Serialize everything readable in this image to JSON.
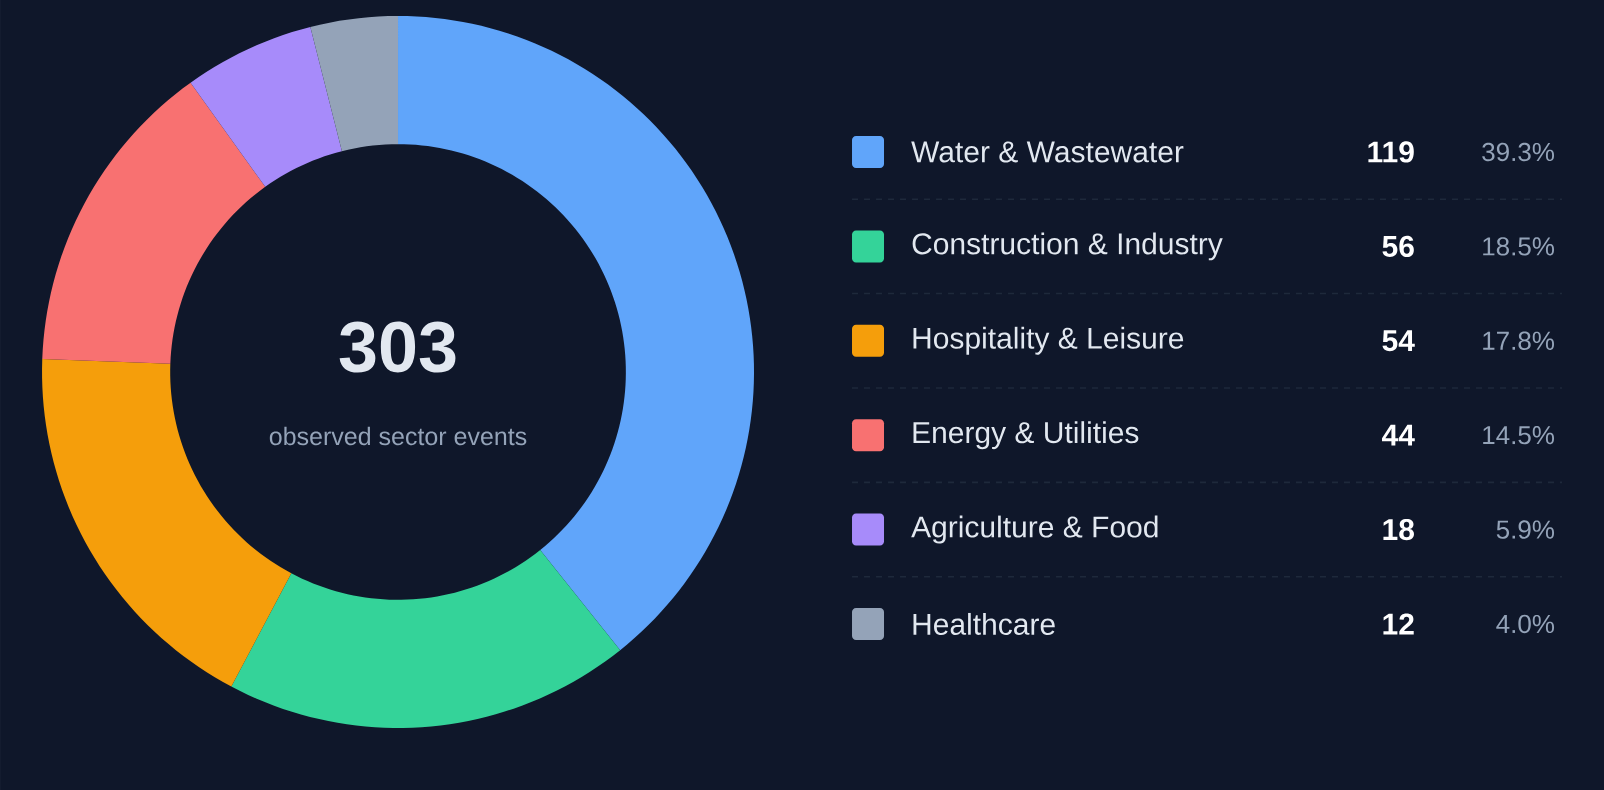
{
  "chart_data": {
    "type": "donut",
    "categories": [
      "Water & Wastewater",
      "Construction & Industry",
      "Hospitality & Leisure",
      "Energy & Utilities",
      "Agriculture & Food",
      "Healthcare"
    ],
    "values": [
      119,
      56,
      54,
      44,
      18,
      12
    ],
    "colors": [
      "#60a5fa",
      "#34d399",
      "#f59e0b",
      "#f87171",
      "#a78bfa",
      "#94a3b8"
    ],
    "value_labels": [
      "119",
      "56",
      "54",
      "44",
      "18",
      "12"
    ],
    "legend": "right",
    "annotations": [
      "303",
      "observed sector events",
      {
        "text": "39.3%",
        "x": "Water & Wastewater"
      },
      {
        "text": "18.5%",
        "x": "Construction & Industry"
      },
      {
        "text": "17.8%",
        "x": "Hospitality & Leisure"
      },
      {
        "text": "14.5%",
        "x": "Energy & Utilities"
      },
      {
        "text": "5.9%",
        "x": "Agriculture & Food"
      },
      {
        "text": "4.0%",
        "x": "Healthcare"
      }
    ]
  }
}
